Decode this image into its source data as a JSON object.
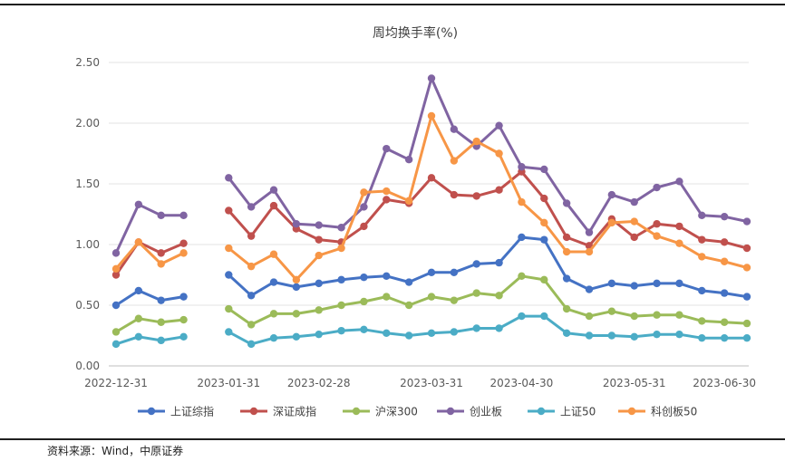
{
  "source": "资料来源：Wind，中原证券",
  "chart_data": {
    "type": "line",
    "title": "周均换手率(%)",
    "xlabel": "",
    "ylabel": "",
    "ylim": [
      0,
      2.5
    ],
    "yticks": [
      "0.00",
      "0.50",
      "1.00",
      "1.50",
      "2.00",
      "2.50"
    ],
    "xtick_labels": [
      "2022-12-31",
      "2023-01-31",
      "2023-02-28",
      "2023-03-31",
      "2023-04-30",
      "2023-05-31",
      "2023-06-30"
    ],
    "xtick_index": [
      0,
      5,
      9,
      14,
      18,
      23,
      27
    ],
    "legend_position": "bottom",
    "series": [
      {
        "name": "上证综指",
        "color": "#4472C4",
        "values": [
          0.5,
          0.62,
          0.54,
          0.57,
          null,
          0.75,
          0.58,
          0.69,
          0.65,
          0.68,
          0.71,
          0.73,
          0.74,
          0.69,
          0.77,
          0.77,
          0.84,
          0.85,
          1.06,
          1.04,
          0.72,
          0.63,
          0.68,
          0.66,
          0.68,
          0.68,
          0.62,
          0.6,
          0.57
        ]
      },
      {
        "name": "深证成指",
        "color": "#C0504D",
        "values": [
          0.75,
          1.02,
          0.93,
          1.01,
          null,
          1.28,
          1.07,
          1.32,
          1.13,
          1.04,
          1.02,
          1.15,
          1.37,
          1.34,
          1.55,
          1.41,
          1.4,
          1.45,
          1.6,
          1.38,
          1.06,
          0.99,
          1.21,
          1.06,
          1.17,
          1.15,
          1.04,
          1.02,
          0.97
        ]
      },
      {
        "name": "沪深300",
        "color": "#9BBB59",
        "values": [
          0.28,
          0.39,
          0.36,
          0.38,
          null,
          0.47,
          0.34,
          0.43,
          0.43,
          0.46,
          0.5,
          0.53,
          0.57,
          0.5,
          0.57,
          0.54,
          0.6,
          0.58,
          0.74,
          0.71,
          0.47,
          0.41,
          0.45,
          0.41,
          0.42,
          0.42,
          0.37,
          0.36,
          0.35
        ]
      },
      {
        "name": "创业板",
        "color": "#8064A2",
        "values": [
          0.93,
          1.33,
          1.24,
          1.24,
          null,
          1.55,
          1.31,
          1.45,
          1.17,
          1.16,
          1.14,
          1.31,
          1.79,
          1.7,
          2.37,
          1.95,
          1.81,
          1.98,
          1.64,
          1.62,
          1.34,
          1.1,
          1.41,
          1.35,
          1.47,
          1.52,
          1.24,
          1.23,
          1.19
        ]
      },
      {
        "name": "上证50",
        "color": "#4BACC6",
        "values": [
          0.18,
          0.24,
          0.21,
          0.24,
          null,
          0.28,
          0.18,
          0.23,
          0.24,
          0.26,
          0.29,
          0.3,
          0.27,
          0.25,
          0.27,
          0.28,
          0.31,
          0.31,
          0.41,
          0.41,
          0.27,
          0.25,
          0.25,
          0.24,
          0.26,
          0.26,
          0.23,
          0.23,
          0.23
        ]
      },
      {
        "name": "科创板50",
        "color": "#F79646",
        "values": [
          0.8,
          1.02,
          0.84,
          0.93,
          null,
          0.97,
          0.82,
          0.92,
          0.71,
          0.91,
          0.97,
          1.43,
          1.44,
          1.36,
          2.06,
          1.69,
          1.85,
          1.75,
          1.35,
          1.18,
          0.94,
          0.94,
          1.18,
          1.19,
          1.07,
          1.01,
          0.9,
          0.86,
          0.81
        ]
      }
    ]
  }
}
